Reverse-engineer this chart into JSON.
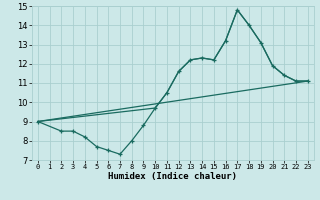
{
  "xlabel": "Humidex (Indice chaleur)",
  "xlim": [
    -0.5,
    23.5
  ],
  "ylim": [
    7,
    15
  ],
  "xticks": [
    0,
    1,
    2,
    3,
    4,
    5,
    6,
    7,
    8,
    9,
    10,
    11,
    12,
    13,
    14,
    15,
    16,
    17,
    18,
    19,
    20,
    21,
    22,
    23
  ],
  "yticks": [
    7,
    8,
    9,
    10,
    11,
    12,
    13,
    14,
    15
  ],
  "bg_color": "#cce8e8",
  "line_color": "#1a6b60",
  "grid_color": "#aacfcf",
  "line1_x": [
    0,
    2,
    3,
    4,
    5,
    6,
    7,
    8,
    9,
    10,
    11,
    12,
    13,
    14,
    15,
    16,
    17,
    18,
    19,
    20,
    21,
    22,
    23
  ],
  "line1_y": [
    9.0,
    8.5,
    8.5,
    8.2,
    7.7,
    7.5,
    7.3,
    8.0,
    8.8,
    9.7,
    10.5,
    11.6,
    12.2,
    12.3,
    12.2,
    13.2,
    14.8,
    14.0,
    13.1,
    11.9,
    11.4,
    11.1,
    11.1
  ],
  "line2_x": [
    0,
    10,
    11,
    12,
    13,
    14,
    15,
    16,
    17,
    18,
    19,
    20,
    21,
    22,
    23
  ],
  "line2_y": [
    9.0,
    9.7,
    10.5,
    11.6,
    12.2,
    12.3,
    12.2,
    13.2,
    14.8,
    14.0,
    13.1,
    11.9,
    11.4,
    11.1,
    11.1
  ],
  "line3_x": [
    0,
    23
  ],
  "line3_y": [
    9.0,
    11.1
  ]
}
